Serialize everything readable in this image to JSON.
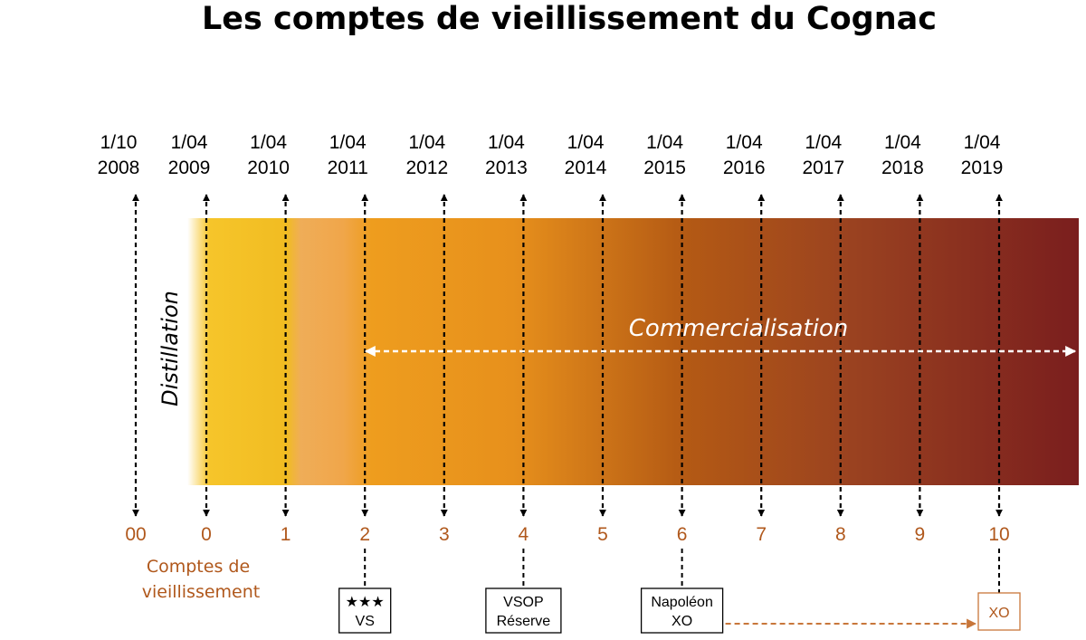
{
  "title": "Les comptes de vieillissement du Cognac",
  "phases": {
    "distillation": "Distillation",
    "commercialisation": "Commercialisation"
  },
  "comptes_label": [
    "Comptes de",
    "vieillissement"
  ],
  "timeline": [
    {
      "day": "1/10",
      "year": "2008",
      "count": "00"
    },
    {
      "day": "1/04",
      "year": "2009",
      "count": "0"
    },
    {
      "day": "1/04",
      "year": "2010",
      "count": "1"
    },
    {
      "day": "1/04",
      "year": "2011",
      "count": "2"
    },
    {
      "day": "1/04",
      "year": "2012",
      "count": "3"
    },
    {
      "day": "1/04",
      "year": "2013",
      "count": "4"
    },
    {
      "day": "1/04",
      "year": "2014",
      "count": "5"
    },
    {
      "day": "1/04",
      "year": "2015",
      "count": "6"
    },
    {
      "day": "1/04",
      "year": "2016",
      "count": "7"
    },
    {
      "day": "1/04",
      "year": "2017",
      "count": "8"
    },
    {
      "day": "1/04",
      "year": "2018",
      "count": "9"
    },
    {
      "day": "1/04",
      "year": "2019",
      "count": "10"
    }
  ],
  "grades": [
    {
      "count": "2",
      "lines": [
        "★★★",
        "VS"
      ]
    },
    {
      "count": "4",
      "lines": [
        "VSOP",
        "Réserve"
      ]
    },
    {
      "count": "6",
      "lines": [
        "Napoléon",
        "XO"
      ]
    },
    {
      "count": "10",
      "lines": [
        "XO"
      ]
    }
  ],
  "colors": {
    "count_text": "#b0581c",
    "xo_border": "#c8763a",
    "gradient": [
      "#ffffff",
      "#f6c52a",
      "#f1a536",
      "#e7901c",
      "#b45a14",
      "#8e3620",
      "#7a1e1e"
    ]
  }
}
